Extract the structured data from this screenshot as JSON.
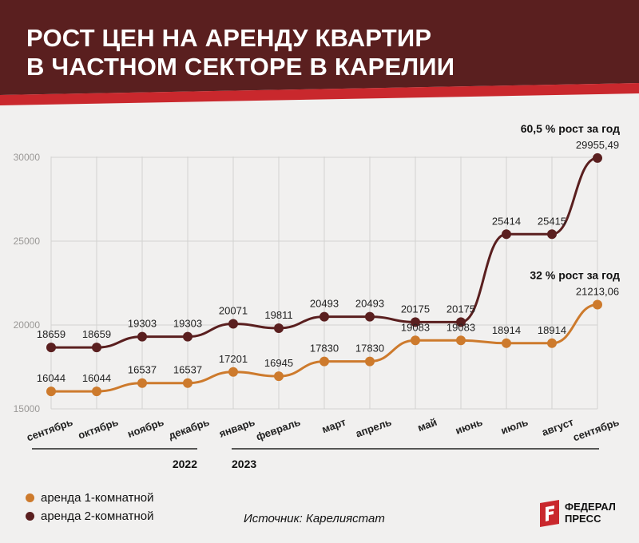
{
  "header": {
    "title_line1": "РОСТ ЦЕН НА АРЕНДУ КВАРТИР",
    "title_line2": "В ЧАСТНОМ СЕКТОРЕ В КАРЕЛИИ",
    "bg_color": "#5a1f1f",
    "stripe_color": "#c9282d"
  },
  "chart_data": {
    "type": "line",
    "categories": [
      "сентябрь",
      "октябрь",
      "ноябрь",
      "декабрь",
      "январь",
      "февраль",
      "март",
      "апрель",
      "май",
      "июнь",
      "июль",
      "август",
      "сентябрь"
    ],
    "year_groups": [
      {
        "label": "2022",
        "start_index": 0,
        "end_index": 3
      },
      {
        "label": "2023",
        "start_index": 4,
        "end_index": 12
      }
    ],
    "yticks": [
      "15000",
      "20000",
      "25000",
      "30000"
    ],
    "ylim": [
      15000,
      30000
    ],
    "grid": true,
    "series": [
      {
        "name": "аренда 1-комнатной",
        "color": "#cd7a2c",
        "values": [
          16044,
          16044,
          16537,
          16537,
          17201,
          16945,
          17830,
          17830,
          19083,
          19083,
          18914,
          18914,
          21213.06
        ],
        "labels": [
          "16044",
          "16044",
          "16537",
          "16537",
          "17201",
          "16945",
          "17830",
          "17830",
          "19083",
          "19083",
          "18914",
          "18914",
          "21213,06"
        ],
        "annotation": "32 % рост за год"
      },
      {
        "name": "аренда 2-комнатной",
        "color": "#5a1f1f",
        "values": [
          18659,
          18659,
          19303,
          19303,
          20071,
          19811,
          20493,
          20493,
          20175,
          20175,
          25414,
          25415,
          29955.49
        ],
        "labels": [
          "18659",
          "18659",
          "19303",
          "19303",
          "20071",
          "19811",
          "20493",
          "20493",
          "20175",
          "20175",
          "25414",
          "25415",
          "29955,49"
        ],
        "annotation": "60,5 % рост за год"
      }
    ]
  },
  "footer": {
    "source": "Источник: Карелиястат",
    "logo_line1": "ФЕДЕРАЛ",
    "logo_line2": "ПРЕСС",
    "logo_icon": "federal-press-logo-icon"
  }
}
